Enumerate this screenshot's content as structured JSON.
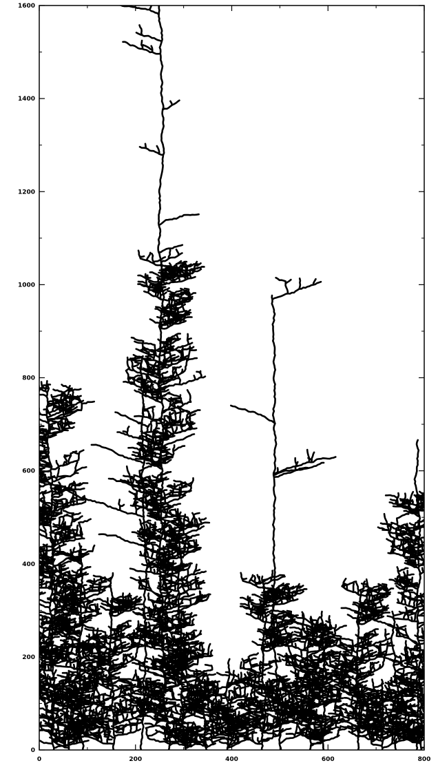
{
  "chart_data": {
    "type": "aggregate",
    "xlim": [
      0,
      800
    ],
    "ylim": [
      0,
      1600
    ],
    "xticks": [
      0,
      200,
      400,
      600,
      800
    ],
    "yticks": [
      0,
      200,
      400,
      600,
      800,
      1000,
      1200,
      1400,
      1600
    ]
  }
}
